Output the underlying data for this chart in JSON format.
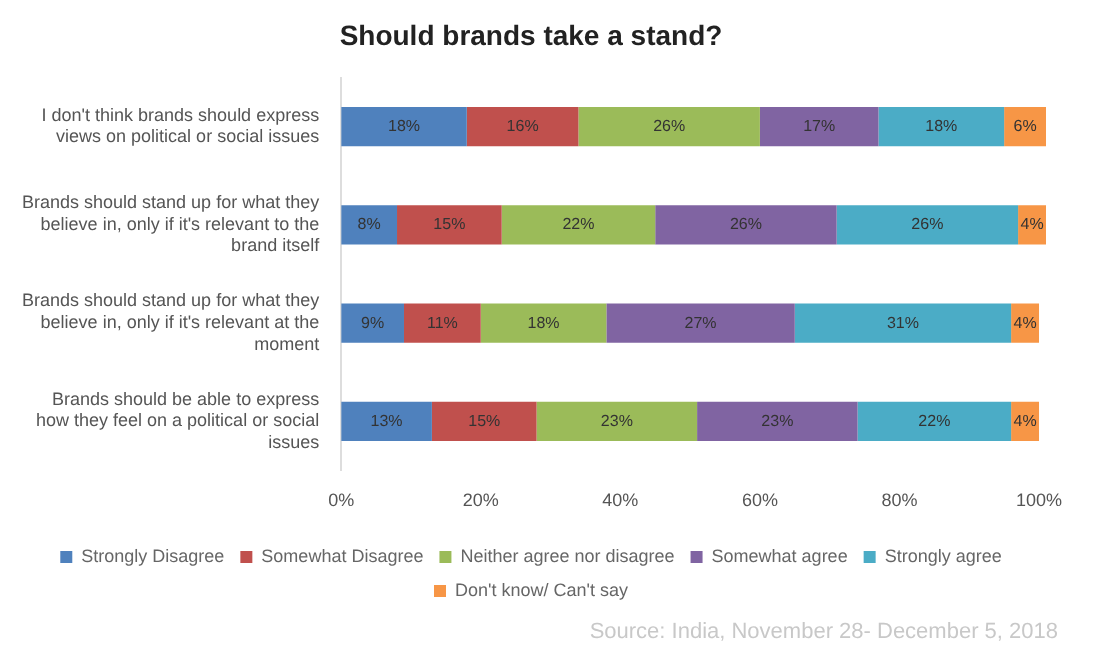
{
  "chart_data": {
    "type": "bar",
    "orientation": "horizontal",
    "stacked": true,
    "title": "Should brands take a stand?",
    "categories": [
      "I don't think brands should express views on political or social issues",
      "Brands should stand up for what they believe in, only if it's relevant to the brand itself",
      "Brands should stand up for what they believe in, only if it's relevant at the moment",
      "Brands should be able to express how they feel on a political or social issues"
    ],
    "series": [
      {
        "name": "Strongly Disagree",
        "color": "#4f81bd",
        "values": [
          18,
          8,
          9,
          13
        ],
        "value_labels": [
          "18%",
          "8%",
          "9%",
          "13%"
        ]
      },
      {
        "name": "Somewhat Disagree",
        "color": "#c0504d",
        "values": [
          16,
          15,
          11,
          15
        ],
        "value_labels": [
          "16%",
          "15%",
          "11%",
          "15%"
        ]
      },
      {
        "name": "Neither agree nor disagree",
        "color": "#9bbb59",
        "values": [
          26,
          22,
          18,
          23
        ],
        "value_labels": [
          "26%",
          "22%",
          "18%",
          "23%"
        ]
      },
      {
        "name": "Somewhat agree",
        "color": "#8064a2",
        "values": [
          17,
          26,
          27,
          23
        ],
        "value_labels": [
          "17%",
          "26%",
          "27%",
          "23%"
        ]
      },
      {
        "name": "Strongly agree",
        "color": "#4bacc6",
        "values": [
          18,
          26,
          31,
          22
        ],
        "value_labels": [
          "18%",
          "26%",
          "31%",
          "22%"
        ]
      },
      {
        "name": "Don't know/ Can't say",
        "color": "#f79646",
        "values": [
          6,
          4,
          4,
          4
        ],
        "value_labels": [
          "6%",
          "4%",
          "4%",
          "4%"
        ]
      }
    ],
    "xlim": [
      0,
      101
    ],
    "xticks": [
      {
        "value": 0,
        "label": "0%"
      },
      {
        "value": 20,
        "label": "20%"
      },
      {
        "value": 40,
        "label": "40%"
      },
      {
        "value": 60,
        "label": "60%"
      },
      {
        "value": 80,
        "label": "80%"
      },
      {
        "value": 100,
        "label": "100%"
      }
    ],
    "grid": false,
    "legend": "bottom",
    "annotations": [
      "Source: India, November 28- December 5, 2018"
    ]
  }
}
